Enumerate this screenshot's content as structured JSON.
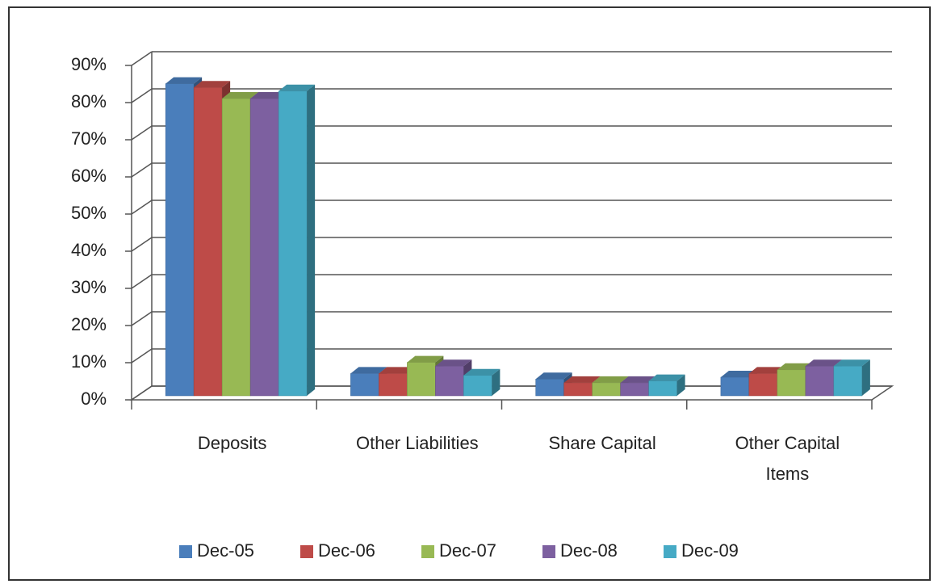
{
  "chart_data": {
    "type": "bar3d",
    "categories": [
      "Deposits",
      "Other Liabilities",
      "Share Capital",
      "Other Capital Items"
    ],
    "series": [
      {
        "name": "Dec-05",
        "color": "#4a7ebb",
        "values": [
          84,
          6,
          4.5,
          5
        ]
      },
      {
        "name": "Dec-06",
        "color": "#be4b48",
        "values": [
          83,
          6,
          3.5,
          6
        ]
      },
      {
        "name": "Dec-07",
        "color": "#98b954",
        "values": [
          80,
          9,
          3.5,
          7
        ]
      },
      {
        "name": "Dec-08",
        "color": "#7d60a0",
        "values": [
          80,
          8,
          3.5,
          8
        ]
      },
      {
        "name": "Dec-09",
        "color": "#46aac5",
        "values": [
          82,
          5.5,
          4,
          8
        ]
      }
    ],
    "ylim": [
      0,
      90
    ],
    "yticks": [
      {
        "value": 0,
        "label": "0%"
      },
      {
        "value": 10,
        "label": "10%"
      },
      {
        "value": 20,
        "label": "20%"
      },
      {
        "value": 30,
        "label": "30%"
      },
      {
        "value": 40,
        "label": "40%"
      },
      {
        "value": 50,
        "label": "50%"
      },
      {
        "value": 60,
        "label": "60%"
      },
      {
        "value": 70,
        "label": "70%"
      },
      {
        "value": 80,
        "label": "80%"
      },
      {
        "value": 90,
        "label": "90%"
      }
    ],
    "grid": true,
    "legend": "bottom"
  }
}
